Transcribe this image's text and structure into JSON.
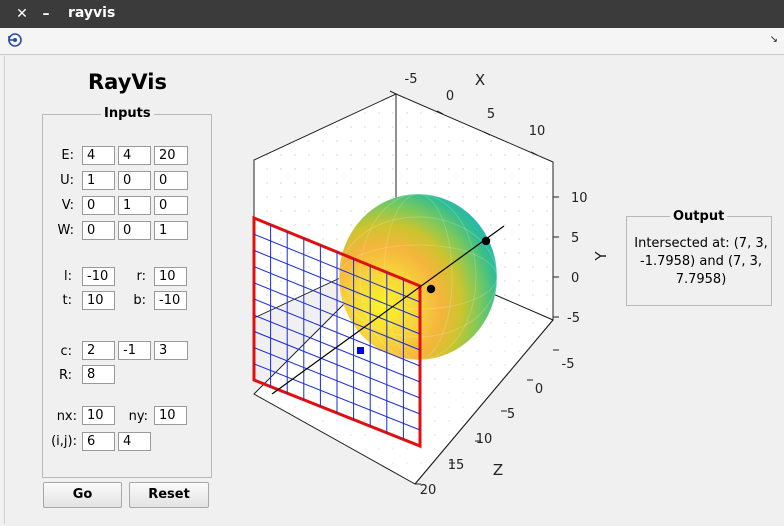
{
  "window": {
    "title": "rayvis",
    "close_glyph": "✕",
    "minimize_glyph": "–"
  },
  "app": {
    "title": "RayVis"
  },
  "inputs": {
    "title": "Inputs",
    "E": {
      "label": "E:",
      "values": [
        "4",
        "4",
        "20"
      ]
    },
    "U": {
      "label": "U:",
      "values": [
        "1",
        "0",
        "0"
      ]
    },
    "V": {
      "label": "V:",
      "values": [
        "0",
        "1",
        "0"
      ]
    },
    "W": {
      "label": "W:",
      "values": [
        "0",
        "0",
        "1"
      ]
    },
    "l": {
      "label": "l:",
      "value": "-10"
    },
    "r": {
      "label": "r:",
      "value": "10"
    },
    "t": {
      "label": "t:",
      "value": "10"
    },
    "b": {
      "label": "b:",
      "value": "-10"
    },
    "c": {
      "label": "c:",
      "values": [
        "2",
        "-1",
        "3"
      ]
    },
    "R": {
      "label": "R:",
      "value": "8"
    },
    "nx": {
      "label": "nx:",
      "value": "10"
    },
    "ny": {
      "label": "ny:",
      "value": "10"
    },
    "ij": {
      "label": "(i,j):",
      "values": [
        "6",
        "4"
      ]
    }
  },
  "buttons": {
    "go": "Go",
    "reset": "Reset"
  },
  "output": {
    "title": "Output",
    "text": "Intersected at: (7, 3, -1.7958) and (7, 3, 7.7958)"
  },
  "plot": {
    "x_axis": {
      "label": "X",
      "ticks": [
        "-5",
        "0",
        "5",
        "10"
      ]
    },
    "y_axis": {
      "label": "Y",
      "ticks": [
        "10",
        "5",
        "0",
        "-5"
      ]
    },
    "z_axis": {
      "label": "Z",
      "ticks": [
        "-5",
        "0",
        "5",
        "10",
        "15",
        "20"
      ]
    },
    "colors": {
      "image_plane_border": "#e01010",
      "grid_lines": "#1a2bd6",
      "ray": "#000000",
      "pixel_marker": "#0000ee",
      "hit_point": "#000000"
    }
  }
}
